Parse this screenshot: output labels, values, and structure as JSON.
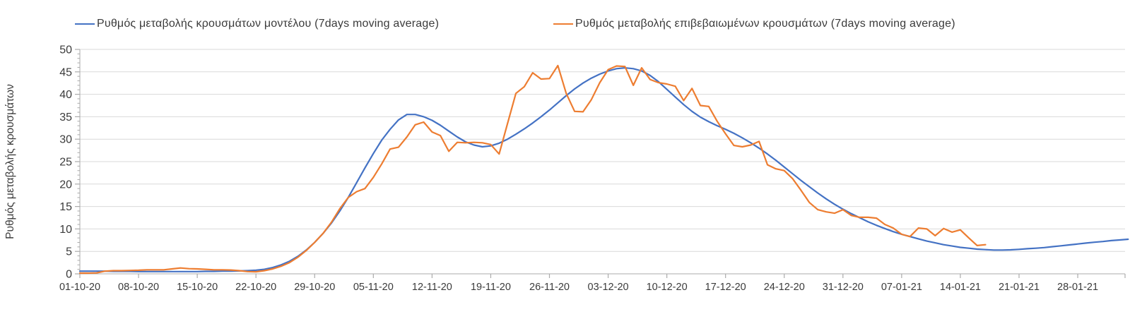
{
  "chart_data": {
    "type": "line",
    "title": "",
    "ylabel": "Ρυθμός μεταβολής κρουσμάτων",
    "xlabel": "",
    "ylim": [
      0,
      50
    ],
    "ytick_step": 5,
    "y_tick_labels": [
      "0",
      "5",
      "10",
      "15",
      "20",
      "25",
      "30",
      "35",
      "40",
      "45",
      "50"
    ],
    "grid": "horizontal",
    "legend_position": "top",
    "x_unit": "days since 01-10-2020, one point per day",
    "x_tick_interval_days": 7,
    "x_tick_labels": [
      "01-10-20",
      "08-10-20",
      "15-10-20",
      "22-10-20",
      "29-10-20",
      "05-11-20",
      "12-11-20",
      "19-11-20",
      "26-11-20",
      "03-12-20",
      "10-12-20",
      "17-12-20",
      "24-12-20",
      "31-12-20",
      "07-01-21",
      "14-01-21",
      "21-01-21",
      "28-01-21"
    ],
    "series": [
      {
        "name": "Ρυθμός μεταβολής κρουσμάτων μοντέλου (7days moving average)",
        "color": "#4472C4",
        "start_day": 0,
        "values": [
          0.6,
          0.6,
          0.6,
          0.6,
          0.55,
          0.55,
          0.55,
          0.5,
          0.5,
          0.5,
          0.5,
          0.5,
          0.5,
          0.5,
          0.5,
          0.55,
          0.55,
          0.6,
          0.6,
          0.65,
          0.7,
          0.8,
          1.0,
          1.4,
          2.0,
          2.8,
          3.9,
          5.3,
          7.0,
          9.0,
          11.3,
          14.0,
          17.0,
          20.3,
          23.6,
          26.8,
          29.8,
          32.2,
          34.3,
          35.5,
          35.5,
          35.0,
          34.2,
          33.1,
          31.8,
          30.5,
          29.4,
          28.7,
          28.3,
          28.5,
          29.1,
          30.0,
          31.1,
          32.3,
          33.6,
          35.0,
          36.5,
          38.1,
          39.7,
          41.2,
          42.5,
          43.6,
          44.5,
          45.2,
          45.7,
          45.9,
          45.7,
          45.2,
          44.2,
          42.8,
          41.1,
          39.4,
          37.7,
          36.2,
          34.9,
          33.9,
          33.0,
          32.2,
          31.3,
          30.3,
          29.2,
          28.0,
          26.7,
          25.3,
          23.8,
          22.3,
          20.8,
          19.4,
          18.0,
          16.7,
          15.5,
          14.4,
          13.4,
          12.5,
          11.6,
          10.8,
          10.1,
          9.4,
          8.8,
          8.3,
          7.8,
          7.3,
          6.9,
          6.5,
          6.2,
          5.9,
          5.7,
          5.5,
          5.4,
          5.3,
          5.3,
          5.35,
          5.45,
          5.6,
          5.7,
          5.85,
          6.05,
          6.25,
          6.45,
          6.65,
          6.85,
          7.05,
          7.2,
          7.4,
          7.55,
          7.7
        ]
      },
      {
        "name": "Ρυθμός μεταβολής επιβεβαιωμένων κρουσμάτων (7days moving average)",
        "color": "#ED7D31",
        "start_day": 0,
        "values": [
          0.15,
          0.15,
          0.2,
          0.6,
          0.7,
          0.7,
          0.75,
          0.8,
          0.9,
          0.9,
          0.9,
          1.1,
          1.3,
          1.15,
          1.1,
          1.0,
          0.9,
          0.9,
          0.85,
          0.7,
          0.5,
          0.45,
          0.7,
          1.1,
          1.7,
          2.5,
          3.7,
          5.2,
          7.0,
          9.0,
          11.5,
          14.5,
          17.0,
          18.3,
          19.0,
          21.5,
          24.5,
          27.8,
          28.2,
          30.5,
          33.2,
          33.8,
          31.6,
          30.8,
          27.3,
          29.3,
          29.2,
          29.3,
          29.2,
          28.8,
          26.7,
          33.5,
          40.2,
          41.7,
          44.8,
          43.4,
          43.5,
          46.4,
          40.2,
          36.2,
          36.1,
          38.8,
          42.6,
          45.5,
          46.3,
          46.2,
          42.0,
          45.9,
          43.3,
          42.6,
          42.3,
          41.8,
          38.6,
          41.3,
          37.5,
          37.3,
          34.0,
          31.2,
          28.6,
          28.3,
          28.7,
          29.5,
          24.3,
          23.4,
          23.0,
          21.2,
          18.6,
          15.9,
          14.3,
          13.8,
          13.5,
          14.3,
          13.0,
          12.6,
          12.6,
          12.4,
          11.0,
          10.2,
          8.8,
          8.3,
          10.2,
          10.0,
          8.5,
          10.1,
          9.3,
          9.8,
          8.0,
          6.3,
          6.5
        ]
      }
    ],
    "colors": {
      "gridline": "#D9D9D9",
      "axis": "#ABABAB",
      "tick_text": "#3b3b3b"
    }
  }
}
